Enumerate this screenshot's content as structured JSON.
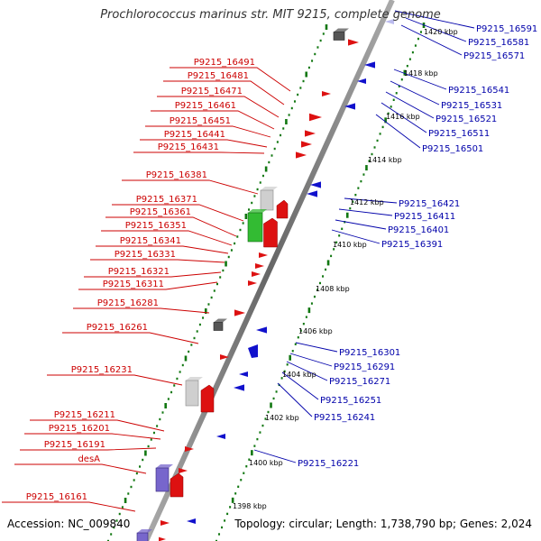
{
  "title": "Prochlorococcus marinus str. MIT 9215, complete genome",
  "footer": {
    "accession": "Accession: NC_009840",
    "summary": "Topology: circular; Length: 1,738,790 bp; Genes: 2,024"
  },
  "colors": {
    "left_label": "#cc0000",
    "right_label": "#0000aa",
    "forward_gene": "#dd1111",
    "reverse_gene": "#1111cc",
    "rna_gene": "#7766cc",
    "pseudo_gene": "#cfcfcf",
    "dark_gene": "#555555",
    "green_gene": "#33bb33",
    "backbone": "#888888",
    "ticks": "#117711"
  },
  "scale": {
    "kbp_labels": [
      "1420 kbp",
      "1418 kbp",
      "1416 kbp",
      "1414 kbp",
      "1412 kbp",
      "1410 kbp",
      "1408 kbp",
      "1406 kbp",
      "1404 kbp",
      "1402 kbp",
      "1400 kbp",
      "1398 kbp"
    ]
  },
  "left_labels": [
    "P9215_16491",
    "P9215_16481",
    "P9215_16471",
    "P9215_16461",
    "P9215_16451",
    "P9215_16441",
    "P9215_16431",
    "P9215_16381",
    "P9215_16371",
    "P9215_16361",
    "P9215_16351",
    "P9215_16341",
    "P9215_16331",
    "P9215_16321",
    "P9215_16311",
    "P9215_16281",
    "P9215_16261",
    "P9215_16231",
    "P9215_16211",
    "P9215_16201",
    "P9215_16191",
    "desA",
    "P9215_16161"
  ],
  "right_labels": [
    "P9215_16591",
    "P9215_16581",
    "P9215_16571",
    "P9215_16541",
    "P9215_16531",
    "P9215_16521",
    "P9215_16511",
    "P9215_16501",
    "P9215_16421",
    "P9215_16411",
    "P9215_16401",
    "P9215_16391",
    "P9215_16301",
    "P9215_16291",
    "P9215_16271",
    "P9215_16251",
    "P9215_16241",
    "P9215_16221"
  ]
}
